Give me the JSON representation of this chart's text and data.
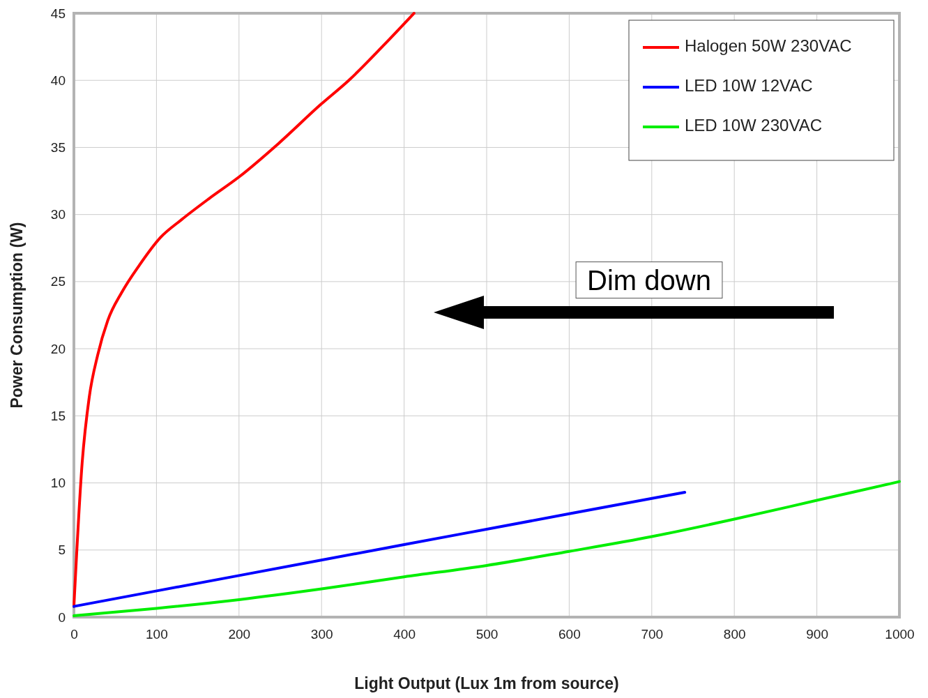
{
  "chart_data": {
    "type": "line",
    "xlabel": "Light Output (Lux 1m from source)",
    "ylabel": "Power Consumption (W)",
    "xlim": [
      0,
      1000
    ],
    "xticks": [
      0,
      100,
      200,
      300,
      400,
      500,
      600,
      700,
      800,
      900,
      1000
    ],
    "ylim": [
      0,
      45
    ],
    "yticks": [
      0,
      5,
      10,
      15,
      20,
      25,
      30,
      35,
      40,
      45
    ],
    "grid": true,
    "legend": "top right",
    "line_style": "solid",
    "marker": "none",
    "annotations": [
      "Dim down"
    ],
    "series": [
      {
        "name": "Halogen 50W 230VAC",
        "color": "#ff0000",
        "x": [
          0,
          10,
          18.6,
          28.7,
          41,
          58,
          79,
          105,
          130,
          164,
          200,
          248,
          299,
          333,
          375,
          412
        ],
        "values": [
          0.8,
          11.5,
          16.4,
          19.5,
          22.1,
          24.2,
          26.2,
          28.3,
          29.6,
          31.2,
          32.8,
          35.3,
          38.2,
          40,
          42.6,
          45
        ]
      },
      {
        "name": "LED 10W 12VAC",
        "color": "#0000ff",
        "x": [
          0,
          200,
          400,
          600,
          740
        ],
        "values": [
          0.8,
          3.1,
          5.4,
          7.7,
          9.3
        ]
      },
      {
        "name": "LED 10W 230VAC",
        "color": "#00ee00",
        "x": [
          0,
          100,
          200,
          300,
          400,
          500,
          600,
          700,
          800,
          900,
          1000
        ],
        "values": [
          0.1,
          0.65,
          1.3,
          2.1,
          3,
          3.85,
          4.9,
          6,
          7.3,
          8.7,
          10.1
        ]
      }
    ]
  }
}
